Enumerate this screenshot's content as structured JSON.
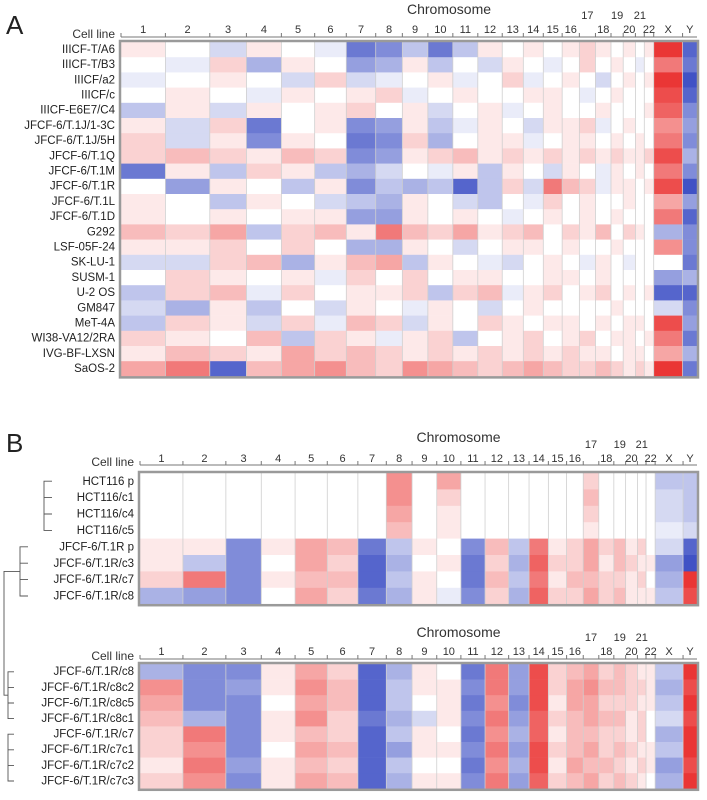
{
  "figure": {
    "panel_a_letter": "A",
    "panel_b_letter": "B",
    "colors": {
      "loss": "#2b3fbf",
      "gain": "#e8201f",
      "neutral": "#ffffff",
      "frame": "#9a9a9a"
    }
  },
  "chart_data": [
    {
      "type": "heatmap",
      "panel": "A",
      "title": "Chromosome",
      "row_header": "Cell line",
      "columns": [
        "1",
        "2",
        "3",
        "4",
        "5",
        "6",
        "7",
        "8",
        "9",
        "10",
        "11",
        "12",
        "13",
        "14",
        "15",
        "16",
        "17",
        "18",
        "19",
        "20",
        "21",
        "22",
        "X",
        "Y"
      ],
      "rows": [
        "IIICF-T/A6",
        "IIICF-T/B3",
        "IIICF/a2",
        "IIICF/c",
        "IIICF-E6E7/C4",
        "JFCF-6/T.1J/1-3C",
        "JFCF-6/T.1J/5H",
        "JFCF-6/T.1Q",
        "JFCF-6/T.1M",
        "JFCF-6/T.1R",
        "JFCF-6/T.1L",
        "JFCF-6/T.1D",
        "G292",
        "LSF-05F-24",
        "SK-LU-1",
        "SUSM-1",
        "U-2 OS",
        "GM847",
        "MeT-4A",
        "WI38-VA12/2RA",
        "IVG-BF-LXSN",
        "SaOS-2"
      ],
      "values": [
        [
          0.1,
          0.0,
          -0.2,
          0.1,
          0.0,
          -0.1,
          -0.7,
          -0.6,
          -0.3,
          -0.7,
          -0.3,
          0.1,
          0.0,
          0.1,
          0.0,
          0.1,
          0.2,
          0.1,
          0.0,
          0.1,
          0.0,
          0.1,
          0.9,
          -0.8
        ],
        [
          0.0,
          -0.1,
          0.2,
          -0.4,
          0.1,
          0.0,
          -0.5,
          -0.4,
          0.1,
          -0.3,
          0.0,
          -0.2,
          0.1,
          0.0,
          -0.1,
          0.0,
          0.2,
          0.0,
          0.1,
          0.0,
          -0.1,
          0.0,
          0.6,
          -0.7
        ],
        [
          -0.1,
          0.0,
          0.1,
          0.0,
          -0.2,
          0.2,
          -0.2,
          -0.1,
          0.0,
          0.1,
          -0.1,
          0.0,
          0.2,
          -0.1,
          0.0,
          0.1,
          0.0,
          -0.2,
          0.0,
          0.1,
          0.0,
          0.1,
          0.9,
          -0.9
        ],
        [
          0.0,
          0.1,
          0.0,
          -0.1,
          0.1,
          0.0,
          0.1,
          0.2,
          -0.1,
          0.0,
          0.1,
          0.0,
          0.0,
          0.1,
          0.1,
          0.0,
          -0.1,
          0.0,
          0.1,
          0.0,
          0.0,
          0.0,
          0.8,
          -0.8
        ],
        [
          -0.3,
          0.1,
          -0.2,
          0.1,
          0.0,
          0.1,
          0.2,
          0.0,
          0.1,
          -0.2,
          0.0,
          0.1,
          -0.1,
          0.0,
          0.1,
          0.0,
          0.0,
          0.1,
          0.0,
          0.0,
          0.0,
          0.1,
          0.7,
          -0.6
        ],
        [
          0.1,
          -0.2,
          0.2,
          -0.7,
          0.0,
          0.1,
          -0.6,
          -0.5,
          0.1,
          -0.3,
          -0.1,
          0.1,
          0.0,
          -0.2,
          0.1,
          0.1,
          0.2,
          -0.1,
          0.0,
          0.1,
          0.0,
          0.0,
          0.5,
          -0.5
        ],
        [
          0.2,
          -0.2,
          0.1,
          -0.6,
          0.1,
          0.0,
          -0.7,
          -0.6,
          0.2,
          -0.4,
          0.0,
          0.1,
          0.1,
          -0.1,
          0.0,
          0.1,
          0.1,
          0.0,
          0.1,
          0.0,
          0.1,
          0.0,
          0.6,
          -0.6
        ],
        [
          0.2,
          0.3,
          0.2,
          0.1,
          0.3,
          0.2,
          -0.6,
          -0.5,
          0.1,
          0.2,
          0.3,
          0.1,
          0.2,
          0.1,
          0.2,
          0.1,
          0.2,
          0.1,
          0.2,
          0.1,
          0.1,
          0.2,
          0.8,
          -0.4
        ],
        [
          -0.7,
          0.1,
          -0.3,
          0.2,
          0.1,
          -0.3,
          -0.4,
          -0.2,
          0.0,
          -0.1,
          0.1,
          -0.3,
          0.1,
          0.0,
          -0.2,
          0.1,
          0.0,
          -0.1,
          0.1,
          0.0,
          0.1,
          0.0,
          0.6,
          -0.6
        ],
        [
          0.0,
          -0.5,
          0.1,
          0.0,
          -0.3,
          0.1,
          -0.6,
          -0.3,
          -0.4,
          -0.3,
          -0.8,
          -0.3,
          0.2,
          -0.2,
          0.6,
          0.3,
          0.2,
          -0.1,
          0.1,
          0.1,
          0.0,
          0.1,
          0.8,
          -0.9
        ],
        [
          0.1,
          0.0,
          -0.3,
          0.1,
          0.0,
          -0.2,
          -0.3,
          -0.4,
          0.1,
          0.0,
          -0.2,
          -0.3,
          0.0,
          -0.1,
          0.2,
          0.0,
          0.1,
          0.0,
          0.0,
          0.1,
          0.0,
          0.0,
          0.4,
          -0.5
        ],
        [
          0.1,
          0.0,
          0.1,
          0.0,
          0.1,
          0.1,
          -0.5,
          -0.5,
          0.1,
          0.0,
          0.1,
          0.0,
          -0.1,
          0.0,
          0.1,
          0.0,
          0.1,
          0.0,
          0.1,
          0.0,
          0.0,
          0.0,
          0.6,
          -0.8
        ],
        [
          0.3,
          0.2,
          0.4,
          -0.3,
          0.2,
          0.3,
          0.1,
          0.6,
          0.3,
          0.2,
          0.4,
          0.1,
          0.2,
          0.3,
          0.0,
          0.2,
          0.1,
          0.3,
          0.0,
          0.2,
          0.1,
          0.0,
          -0.4,
          -0.6
        ],
        [
          0.1,
          0.1,
          0.2,
          0.0,
          0.2,
          0.0,
          -0.4,
          -0.4,
          0.1,
          0.0,
          -0.2,
          0.0,
          0.1,
          0.1,
          0.0,
          0.1,
          0.0,
          0.0,
          0.1,
          0.0,
          0.0,
          0.0,
          0.5,
          -0.6
        ],
        [
          -0.2,
          -0.2,
          0.2,
          0.3,
          -0.4,
          0.1,
          0.3,
          0.4,
          -0.3,
          0.1,
          0.0,
          -0.1,
          -0.2,
          0.0,
          0.1,
          0.0,
          -0.1,
          0.1,
          0.0,
          -0.1,
          0.0,
          0.0,
          0.0,
          -0.7
        ],
        [
          0.0,
          0.2,
          0.1,
          0.0,
          0.1,
          -0.1,
          0.2,
          0.0,
          0.2,
          0.0,
          0.1,
          0.1,
          0.0,
          0.0,
          0.1,
          0.1,
          0.0,
          0.1,
          0.0,
          0.0,
          0.0,
          0.0,
          -0.5,
          -0.4
        ],
        [
          -0.3,
          0.2,
          0.3,
          -0.1,
          0.2,
          0.0,
          0.1,
          0.1,
          0.2,
          -0.3,
          0.2,
          0.3,
          -0.1,
          0.1,
          0.2,
          0.0,
          0.1,
          0.2,
          0.0,
          0.1,
          0.0,
          0.1,
          -0.8,
          -0.8
        ],
        [
          -0.2,
          -0.4,
          0.1,
          -0.3,
          0.0,
          -0.2,
          0.1,
          0.0,
          -0.1,
          0.1,
          0.0,
          -0.2,
          0.0,
          0.1,
          0.0,
          0.0,
          0.0,
          0.0,
          0.1,
          0.0,
          0.0,
          0.0,
          -0.2,
          -0.6
        ],
        [
          -0.3,
          0.2,
          0.1,
          -0.2,
          0.2,
          -0.1,
          0.3,
          0.2,
          -0.2,
          0.1,
          0.0,
          0.2,
          0.1,
          0.0,
          0.1,
          0.1,
          0.0,
          0.1,
          0.0,
          0.1,
          0.1,
          0.0,
          0.8,
          -0.5
        ],
        [
          0.2,
          0.1,
          0.0,
          0.3,
          -0.3,
          0.2,
          0.1,
          -0.1,
          0.1,
          0.2,
          -0.3,
          0.0,
          0.1,
          0.2,
          0.0,
          0.1,
          0.2,
          0.0,
          0.1,
          0.1,
          0.0,
          0.1,
          0.6,
          -0.7
        ],
        [
          0.1,
          0.3,
          0.2,
          0.1,
          0.4,
          0.2,
          0.3,
          0.2,
          0.1,
          0.2,
          0.1,
          0.2,
          0.1,
          0.2,
          0.1,
          0.2,
          0.1,
          0.1,
          0.0,
          0.1,
          0.1,
          0.0,
          0.4,
          -0.4
        ],
        [
          0.4,
          0.6,
          -0.8,
          0.3,
          0.4,
          0.5,
          0.3,
          0.2,
          0.5,
          0.4,
          0.3,
          0.2,
          0.3,
          0.4,
          0.3,
          0.2,
          0.2,
          0.3,
          0.2,
          0.1,
          0.2,
          0.1,
          0.9,
          -0.7
        ]
      ]
    },
    {
      "type": "heatmap",
      "panel": "B-upper",
      "title": "Chromosome",
      "row_header": "Cell line",
      "columns": [
        "1",
        "2",
        "3",
        "4",
        "5",
        "6",
        "7",
        "8",
        "9",
        "10",
        "11",
        "12",
        "13",
        "14",
        "15",
        "16",
        "17",
        "18",
        "19",
        "20",
        "21",
        "22",
        "X",
        "Y"
      ],
      "rows": [
        "HCT116 p",
        "HCT116/c1",
        "HCT116/c4",
        "HCT116/c5",
        "JFCF-6/T.1R p",
        "JFCF-6/T.1R/c3",
        "JFCF-6/T.1R/c7",
        "JFCF-6/T.1R/c8"
      ],
      "values": [
        [
          0.0,
          0.0,
          0.0,
          0.0,
          0.0,
          0.0,
          0.0,
          0.5,
          0.0,
          0.4,
          0.0,
          0.0,
          0.0,
          0.0,
          0.0,
          0.0,
          0.2,
          0.0,
          0.0,
          0.0,
          0.0,
          0.0,
          -0.3,
          -0.3
        ],
        [
          0.0,
          0.0,
          0.0,
          0.0,
          0.0,
          0.0,
          0.0,
          0.5,
          0.0,
          0.2,
          0.0,
          0.0,
          0.0,
          0.0,
          0.0,
          0.0,
          0.3,
          0.0,
          0.0,
          0.0,
          0.0,
          0.0,
          -0.2,
          -0.3
        ],
        [
          0.0,
          0.0,
          0.0,
          0.0,
          0.0,
          0.0,
          0.0,
          0.4,
          0.0,
          0.1,
          0.0,
          0.0,
          0.0,
          0.0,
          0.0,
          0.0,
          0.2,
          0.0,
          0.0,
          0.0,
          0.0,
          0.0,
          -0.2,
          -0.3
        ],
        [
          0.0,
          0.0,
          0.0,
          0.0,
          0.0,
          0.0,
          0.0,
          0.3,
          0.0,
          0.1,
          0.0,
          0.0,
          0.0,
          0.0,
          0.0,
          0.0,
          0.1,
          0.0,
          0.0,
          0.0,
          0.0,
          0.0,
          -0.1,
          -0.2
        ],
        [
          0.1,
          0.1,
          -0.6,
          0.1,
          0.4,
          0.3,
          -0.7,
          -0.3,
          0.1,
          0.0,
          -0.6,
          0.3,
          -0.3,
          0.6,
          0.1,
          0.2,
          0.4,
          0.2,
          0.3,
          0.1,
          0.2,
          0.0,
          -0.2,
          -0.8
        ],
        [
          0.1,
          -0.3,
          -0.6,
          0.0,
          0.4,
          0.2,
          -0.8,
          -0.4,
          0.0,
          0.1,
          -0.7,
          0.2,
          -0.4,
          0.7,
          0.2,
          0.2,
          0.4,
          0.1,
          0.3,
          0.2,
          0.1,
          0.1,
          -0.5,
          -0.9
        ],
        [
          0.2,
          0.6,
          -0.6,
          0.1,
          0.3,
          0.3,
          -0.8,
          -0.3,
          0.1,
          0.0,
          -0.7,
          0.3,
          -0.3,
          0.6,
          0.1,
          0.3,
          0.3,
          0.2,
          0.2,
          0.1,
          0.2,
          0.0,
          -0.4,
          0.9
        ],
        [
          -0.4,
          -0.5,
          -0.6,
          0.0,
          0.4,
          0.2,
          -0.7,
          -0.4,
          0.1,
          -0.1,
          -0.6,
          0.2,
          -0.4,
          0.7,
          0.2,
          0.2,
          0.4,
          0.2,
          0.3,
          0.1,
          0.1,
          0.1,
          -0.3,
          0.8
        ]
      ]
    },
    {
      "type": "heatmap",
      "panel": "B-lower",
      "title": "Chromosome",
      "row_header": "Cell line",
      "columns": [
        "1",
        "2",
        "3",
        "4",
        "5",
        "6",
        "7",
        "8",
        "9",
        "10",
        "11",
        "12",
        "13",
        "14",
        "15",
        "16",
        "17",
        "18",
        "19",
        "20",
        "21",
        "22",
        "X",
        "Y"
      ],
      "rows": [
        "JFCF-6/T.1R/c8",
        "JFCF-6/T.1R/c8c2",
        "JFCF-6/T.1R/c8c5",
        "JFCF-6/T.1R/c8c1",
        "JFCF-6/T.1R/c7",
        "JFCF-6/T.1R/c7c1",
        "JFCF-6/T.1R/c7c2",
        "JFCF-6/T.1R/c7c3"
      ],
      "values": [
        [
          -0.4,
          -0.6,
          -0.6,
          0.1,
          0.4,
          0.2,
          -0.8,
          -0.4,
          0.1,
          0.0,
          -0.7,
          0.6,
          -0.5,
          0.8,
          0.2,
          0.3,
          0.4,
          0.2,
          0.3,
          0.2,
          0.1,
          0.1,
          -0.3,
          0.9
        ],
        [
          0.5,
          -0.6,
          -0.5,
          0.1,
          0.5,
          0.3,
          -0.8,
          -0.3,
          0.1,
          0.1,
          -0.6,
          0.6,
          -0.5,
          0.8,
          0.2,
          0.4,
          0.5,
          0.3,
          0.3,
          0.2,
          0.2,
          0.1,
          -0.4,
          0.8
        ],
        [
          0.4,
          -0.6,
          -0.6,
          0.0,
          0.4,
          0.3,
          -0.8,
          -0.3,
          0.0,
          0.1,
          -0.7,
          0.5,
          -0.6,
          0.8,
          0.1,
          0.4,
          0.4,
          0.2,
          0.2,
          0.2,
          0.1,
          0.1,
          -0.3,
          0.9
        ],
        [
          0.3,
          -0.4,
          -0.6,
          0.1,
          0.5,
          0.2,
          -0.7,
          -0.4,
          -0.2,
          0.1,
          -0.6,
          0.6,
          -0.5,
          0.7,
          0.2,
          0.3,
          0.4,
          0.3,
          0.3,
          0.1,
          0.2,
          0.0,
          -0.2,
          0.8
        ],
        [
          0.2,
          0.6,
          -0.6,
          0.1,
          0.3,
          0.2,
          -0.8,
          -0.3,
          0.1,
          0.0,
          -0.7,
          0.5,
          -0.4,
          0.7,
          0.1,
          0.3,
          0.3,
          0.2,
          0.2,
          0.1,
          0.2,
          0.0,
          -0.4,
          0.9
        ],
        [
          0.2,
          0.5,
          -0.6,
          0.0,
          0.4,
          0.3,
          -0.8,
          -0.5,
          0.1,
          0.1,
          -0.6,
          0.6,
          -0.5,
          0.8,
          0.2,
          0.3,
          0.4,
          0.2,
          0.3,
          0.2,
          0.1,
          0.1,
          -0.3,
          0.9
        ],
        [
          0.1,
          0.6,
          -0.5,
          0.1,
          0.3,
          0.2,
          -0.8,
          -0.3,
          0.0,
          0.0,
          -0.7,
          0.5,
          -0.4,
          0.8,
          0.1,
          0.4,
          0.3,
          0.3,
          0.2,
          0.1,
          0.2,
          0.1,
          -0.5,
          0.8
        ],
        [
          0.2,
          0.5,
          -0.6,
          0.1,
          0.4,
          0.3,
          -0.8,
          -0.4,
          0.1,
          0.1,
          -0.6,
          0.6,
          -0.5,
          0.7,
          0.2,
          0.3,
          0.4,
          0.2,
          0.3,
          0.2,
          0.1,
          0.0,
          -0.4,
          0.9
        ]
      ]
    }
  ]
}
